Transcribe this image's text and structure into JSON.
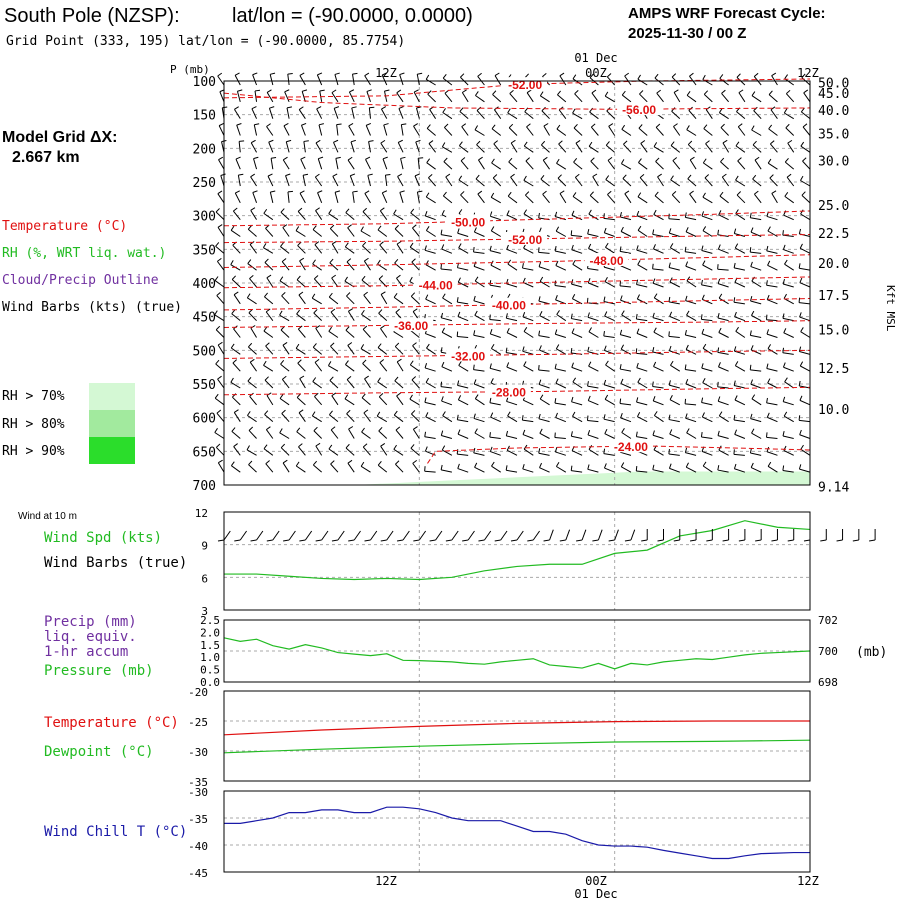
{
  "header": {
    "station": "South Pole (NZSP):",
    "latlon": "lat/lon = (-90.0000, 0.0000)",
    "gridpoint": "Grid Point (333, 195) lat/lon = (-90.0000, 85.7754)",
    "cycle_title": "AMPS WRF Forecast Cycle:",
    "cycle_value": "2025-11-30 / 00  Z"
  },
  "side": {
    "model_grid": "Model Grid ΔX:",
    "model_grid_value": "2.667 km",
    "legend": [
      {
        "text": "Temperature (°C)",
        "color": "#e01010"
      },
      {
        "text": "RH (%, WRT liq. wat.)",
        "color": "#22bb22"
      },
      {
        "text": "Cloud/Precip Outline",
        "color": "#7030a0"
      },
      {
        "text": "Wind Barbs (kts) (true)",
        "color": "#000000"
      }
    ],
    "rh_boxes": [
      {
        "text": "RH > 70%",
        "color": "#d4f8d4"
      },
      {
        "text": "RH > 80%",
        "color": "#a2ea9e"
      },
      {
        "text": "RH > 90%",
        "color": "#2bdd2b"
      }
    ]
  },
  "time_axis": {
    "labels": [
      "12Z",
      "00Z",
      "12Z"
    ],
    "date_label": "01 Dec"
  },
  "colors": {
    "temperature": "#e01010",
    "rh": "#22bb22",
    "wind_chill": "#1a1aa8",
    "precip_label": "#7030a0",
    "grid": "#aaaaaa"
  },
  "chart_data": [
    {
      "type": "cross-section",
      "title": "",
      "ylabel": "P (mb)",
      "right_label": "Kft MSL",
      "x_range_hours": [
        0,
        36
      ],
      "pressure_ticks": [
        "100",
        "150",
        "200",
        "250",
        "300",
        "350",
        "400",
        "450",
        "500",
        "550",
        "600",
        "650",
        "700"
      ],
      "height_ticks": [
        "50.0",
        "45.0",
        "40.0",
        "35.0",
        "30.0",
        "25.0",
        "22.5",
        "20.0",
        "17.5",
        "15.0",
        "12.5",
        "10.0",
        "9.14"
      ],
      "height_ticks_mb": [
        102,
        118,
        143,
        178,
        218,
        284,
        326,
        370,
        418,
        469,
        526,
        587,
        702
      ],
      "temperature_contours": [
        {
          "label": "-52.00",
          "label_x_h": 18.5,
          "points": [
            [
              0,
              125
            ],
            [
              10,
              122
            ],
            [
              18,
              105
            ],
            [
              26,
              100
            ],
            [
              36,
              97
            ]
          ]
        },
        {
          "label": "-56.00",
          "label_x_h": 25.5,
          "points": [
            [
              0,
              118
            ],
            [
              6,
              132
            ],
            [
              14,
              140
            ],
            [
              24,
              142
            ],
            [
              36,
              140
            ]
          ]
        },
        {
          "label": "-50.00",
          "label_x_h": 15,
          "points": [
            [
              0,
              315
            ],
            [
              10,
              312
            ],
            [
              20,
              305
            ],
            [
              30,
              298
            ],
            [
              36,
              293
            ]
          ]
        },
        {
          "label": "-52.00",
          "label_x_h": 18.5,
          "points": [
            [
              0,
              340
            ],
            [
              10,
              338
            ],
            [
              20,
              334
            ],
            [
              30,
              330
            ],
            [
              36,
              328
            ]
          ]
        },
        {
          "label": "-48.00",
          "label_x_h": 23.5,
          "points": [
            [
              0,
              377
            ],
            [
              10,
              373
            ],
            [
              20,
              368
            ],
            [
              30,
              362
            ],
            [
              36,
              358
            ]
          ]
        },
        {
          "label": "-44.00",
          "label_x_h": 13,
          "points": [
            [
              0,
              407
            ],
            [
              10,
              404
            ],
            [
              20,
              399
            ],
            [
              30,
              394
            ],
            [
              36,
              391
            ]
          ]
        },
        {
          "label": "-40.00",
          "label_x_h": 17.5,
          "points": [
            [
              0,
              440
            ],
            [
              10,
              436
            ],
            [
              20,
              431
            ],
            [
              30,
              426
            ],
            [
              36,
              423
            ]
          ]
        },
        {
          "label": "-36.00",
          "label_x_h": 11.5,
          "points": [
            [
              0,
              466
            ],
            [
              10,
              463
            ],
            [
              20,
              460
            ],
            [
              30,
              458
            ],
            [
              36,
              456
            ]
          ]
        },
        {
          "label": "-32.00",
          "label_x_h": 15,
          "points": [
            [
              0,
              512
            ],
            [
              10,
              509
            ],
            [
              20,
              506
            ],
            [
              30,
              502
            ],
            [
              36,
              500
            ]
          ]
        },
        {
          "label": "-28.00",
          "label_x_h": 17.5,
          "points": [
            [
              0,
              566
            ],
            [
              10,
              563
            ],
            [
              20,
              561
            ],
            [
              30,
              557
            ],
            [
              36,
              555
            ]
          ]
        },
        {
          "label": "-24.00",
          "label_x_h": 25,
          "points": [
            [
              12.5,
              668
            ],
            [
              13,
              650
            ],
            [
              18,
              645
            ],
            [
              26,
              642
            ],
            [
              33,
              646
            ],
            [
              36,
              648
            ]
          ]
        }
      ],
      "rh_70_region": {
        "surface_hours": [
          8,
          36
        ],
        "top_mb_max": 680
      }
    },
    {
      "type": "line",
      "title": "Wind at 10 m",
      "series": [
        {
          "name": "Wind Spd (kts)",
          "color": "#22bb22",
          "x": [
            0,
            2,
            4,
            6,
            8,
            10,
            12,
            14,
            16,
            18,
            20,
            22,
            24,
            26,
            28,
            30,
            32,
            34,
            36
          ],
          "values": [
            6.3,
            6.3,
            6.1,
            5.9,
            5.8,
            5.9,
            5.8,
            6.0,
            6.6,
            7.0,
            7.2,
            7.2,
            8.2,
            8.5,
            9.8,
            10.3,
            11.2,
            10.6,
            10.4
          ]
        }
      ],
      "ylabel": "Wind Spd (kts)",
      "ylim": [
        3,
        12
      ],
      "yticks": [
        "3",
        "6",
        "9",
        "12"
      ],
      "barb_label": "Wind Barbs (true)"
    },
    {
      "type": "line",
      "series": [
        {
          "name": "Pressure (mb)",
          "color": "#22bb22",
          "x": [
            0,
            1,
            2,
            3,
            4,
            5,
            6,
            7,
            8,
            9,
            10,
            11,
            12,
            13,
            14,
            15,
            16,
            17,
            18,
            19,
            20,
            21,
            22,
            23,
            24,
            25,
            26,
            27,
            28,
            29,
            30,
            31,
            32,
            33,
            34,
            35,
            36
          ],
          "values": [
            700.85,
            700.62,
            700.76,
            700.34,
            700.12,
            700.41,
            700.2,
            699.9,
            699.8,
            699.7,
            699.82,
            699.4,
            699.38,
            699.34,
            699.3,
            699.2,
            699.15,
            699.3,
            699.4,
            699.5,
            699.1,
            699.0,
            698.9,
            699.2,
            698.85,
            699.2,
            699.1,
            699.3,
            699.4,
            699.5,
            699.45,
            699.6,
            699.75,
            699.85,
            699.9,
            699.95,
            700.0
          ]
        }
      ],
      "ylabel": "Pressure (mb)",
      "ylim": [
        698,
        702
      ],
      "right_ticks": [
        "702",
        "700",
        "698"
      ],
      "right_unit": "(mb)",
      "left_ticks": [
        "0.0",
        "0.5",
        "1.0",
        "1.5",
        "2.0",
        "2.5"
      ],
      "precip_label": [
        "Precip (mm)",
        "liq. equiv.",
        "1-hr accum"
      ]
    },
    {
      "type": "line",
      "series": [
        {
          "name": "Temperature (°C)",
          "color": "#e01010",
          "x": [
            0,
            6,
            12,
            18,
            24,
            30,
            36
          ],
          "values": [
            -27.3,
            -26.5,
            -25.9,
            -25.4,
            -25.1,
            -25.0,
            -25.0
          ]
        },
        {
          "name": "Dewpoint (°C)",
          "color": "#22bb22",
          "x": [
            0,
            6,
            12,
            18,
            24,
            30,
            36
          ],
          "values": [
            -30.3,
            -29.7,
            -29.2,
            -28.8,
            -28.5,
            -28.4,
            -28.2
          ]
        }
      ],
      "ylim": [
        -35,
        -20
      ],
      "yticks": [
        "-35",
        "-30",
        "-25",
        "-20"
      ]
    },
    {
      "type": "line",
      "series": [
        {
          "name": "Wind Chill T (°C)",
          "color": "#1a1aa8",
          "x": [
            0,
            1,
            2,
            3,
            4,
            5,
            6,
            7,
            8,
            9,
            10,
            11,
            12,
            13,
            14,
            15,
            16,
            17,
            18,
            19,
            20,
            21,
            22,
            23,
            24,
            25,
            26,
            27,
            28,
            29,
            30,
            31,
            32,
            33,
            34,
            35,
            36
          ],
          "values": [
            -36,
            -36,
            -35.5,
            -35,
            -34,
            -34,
            -33.5,
            -33.5,
            -34,
            -34,
            -33,
            -33,
            -33.3,
            -34,
            -35,
            -35.5,
            -35.5,
            -35.5,
            -36.5,
            -37.5,
            -37.5,
            -38,
            -39.2,
            -40,
            -40.2,
            -40.2,
            -40.4,
            -41,
            -41.5,
            -42,
            -42.5,
            -42.5,
            -42,
            -41.6,
            -41.5,
            -41.4,
            -41.4
          ]
        }
      ],
      "ylim": [
        -45,
        -30
      ],
      "yticks": [
        "-45",
        "-40",
        "-35",
        "-30"
      ]
    }
  ]
}
